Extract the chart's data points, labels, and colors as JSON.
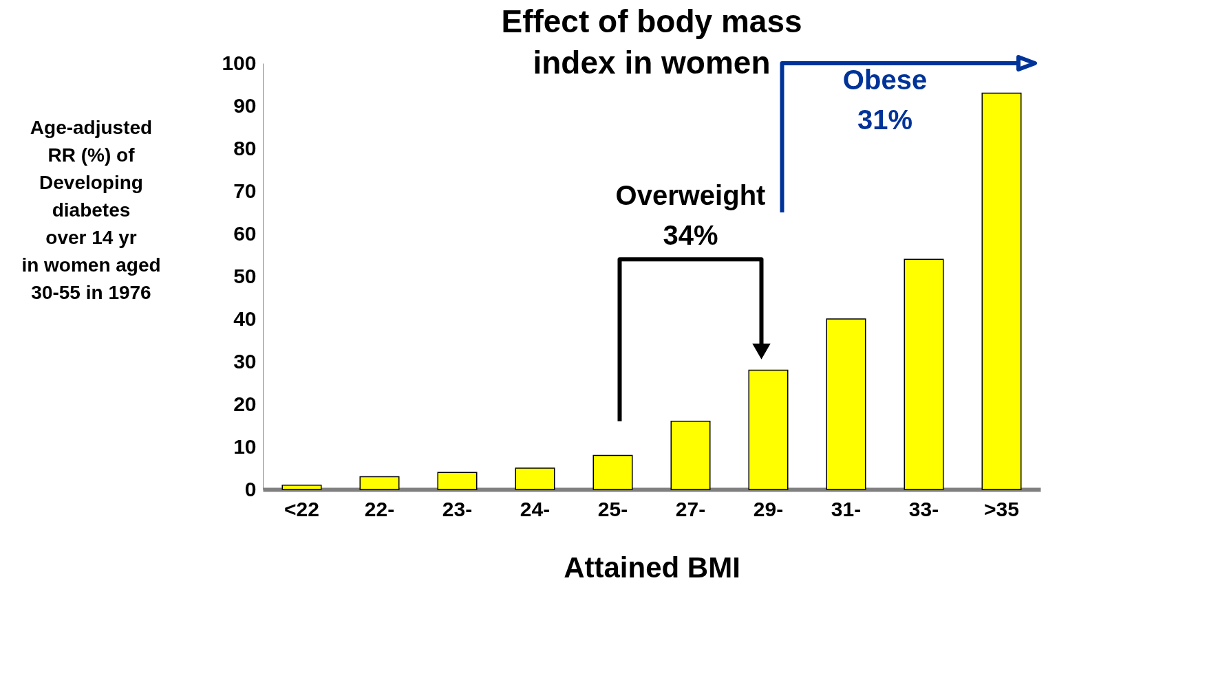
{
  "chart_data": {
    "type": "bar",
    "title": "Effect of body mass\nindex in women",
    "xlabel": "Attained BMI",
    "ylabel": "Age-adjusted\nRR (%) of\nDeveloping\ndiabetes\nover 14 yr\nin women aged\n30-55 in 1976",
    "categories": [
      "<22",
      "22-",
      "23-",
      "24-",
      "25-",
      "27-",
      "29-",
      "31-",
      "33-",
      ">35"
    ],
    "values": [
      1,
      3,
      4,
      5,
      8,
      16,
      28,
      40,
      54,
      93
    ],
    "color": "#ffff00",
    "ylim": [
      0,
      100
    ],
    "yticks": [
      0,
      10,
      20,
      30,
      40,
      50,
      60,
      70,
      80,
      90,
      100
    ],
    "grid": false,
    "annotations": [
      "Overweight\n34%",
      "Obese\n31%"
    ]
  }
}
